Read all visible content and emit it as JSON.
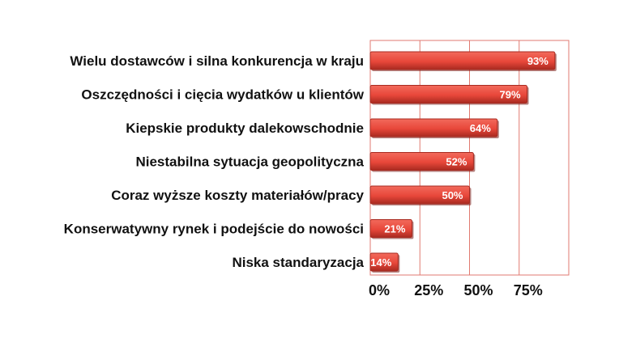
{
  "chart_data": {
    "type": "bar",
    "orientation": "horizontal",
    "categories": [
      "Wielu dostawców i silna konkurencja w kraju",
      "Oszczędności i cięcia wydatków u klientów",
      "Kiepskie produkty dalekowschodnie",
      "Niestabilna sytuacja geopolityczna",
      "Coraz wyższe koszty materiałów/pracy",
      "Konserwatywny rynek i podejście do nowości",
      "Niska standaryzacja"
    ],
    "values": [
      93,
      79,
      64,
      52,
      50,
      21,
      14
    ],
    "value_labels": [
      "93%",
      "79%",
      "64%",
      "52%",
      "50%",
      "21%",
      "14%"
    ],
    "xticks": [
      0,
      25,
      50,
      75
    ],
    "xtick_labels": [
      "0%",
      "25%",
      "50%",
      "75%"
    ],
    "xlim": [
      0,
      100
    ],
    "grid": true,
    "title": "",
    "xlabel": "",
    "ylabel": "",
    "colors": {
      "bar": "#e8473a",
      "bar_highlight": "#f26a5c",
      "bar_shadow": "#a82a20",
      "grid": "#e07a70",
      "text": "#111111"
    }
  }
}
